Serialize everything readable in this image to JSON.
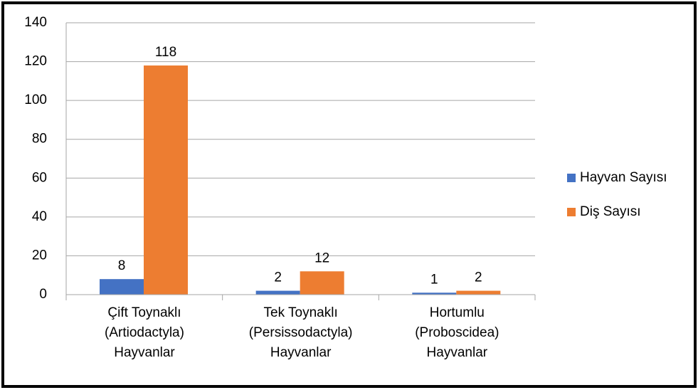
{
  "chart_data": {
    "type": "bar",
    "categories": [
      "Çift Toynaklı\n(Artiodactyla)\nHayvanlar",
      "Tek Toynaklı\n(Persissodactyla)\nHayvanlar",
      "Hortumlu\n(Proboscidea)\nHayvanlar"
    ],
    "series": [
      {
        "name": "Hayvan Sayısı",
        "color": "#4472c4",
        "values": [
          8,
          2,
          1
        ]
      },
      {
        "name": "Diş Sayısı",
        "color": "#ed7d31",
        "values": [
          118,
          12,
          2
        ]
      }
    ],
    "ylim": [
      0,
      140
    ],
    "yticks": [
      0,
      20,
      40,
      60,
      80,
      100,
      120,
      140
    ],
    "grid": true,
    "legend": "right"
  }
}
